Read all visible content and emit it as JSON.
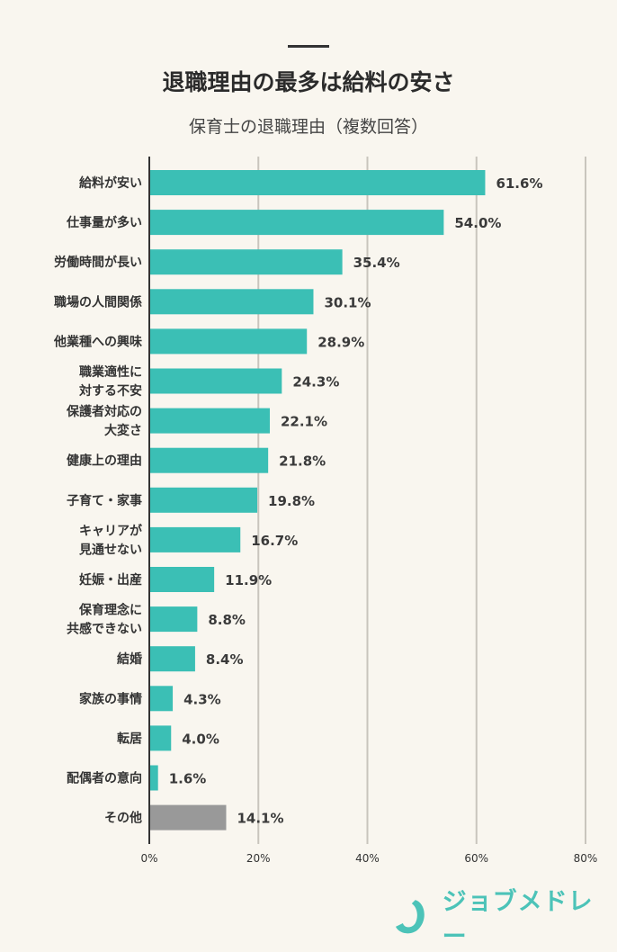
{
  "header": {
    "title": "退職理由の最多は給料の安さ",
    "subtitle": "保育士の退職理由（複数回答）"
  },
  "chart_data": {
    "type": "bar",
    "orientation": "horizontal",
    "title": "退職理由の最多は給料の安さ",
    "subtitle": "保育士の退職理由（複数回答）",
    "categories": [
      "給料が安い",
      "仕事量が多い",
      "労働時間が長い",
      "職場の人間関係",
      "他業種への興味",
      "職業適性に\n対する不安",
      "保護者対応の\n大変さ",
      "健康上の理由",
      "子育て・家事",
      "キャリアが\n見通せない",
      "妊娠・出産",
      "保育理念に\n共感できない",
      "結婚",
      "家族の事情",
      "転居",
      "配偶者の意向",
      "その他"
    ],
    "values": [
      61.6,
      54.0,
      35.4,
      30.1,
      28.9,
      24.3,
      22.1,
      21.8,
      19.8,
      16.7,
      11.9,
      8.8,
      8.4,
      4.3,
      4.0,
      1.6,
      14.1
    ],
    "data_labels": [
      "61.6%",
      "54.0%",
      "35.4%",
      "30.1%",
      "28.9%",
      "24.3%",
      "22.1%",
      "21.8%",
      "19.8%",
      "16.7%",
      "11.9%",
      "8.8%",
      "8.4%",
      "4.3%",
      "4.0%",
      "1.6%",
      "14.1%"
    ],
    "xlim": [
      0,
      80
    ],
    "xticks": [
      0,
      20,
      40,
      60,
      80
    ],
    "xtick_labels": [
      "0%",
      "20%",
      "40%",
      "60%",
      "80%"
    ],
    "grid": "vertical",
    "colors": {
      "bar": "#3bbfb5",
      "other_bar": "#999999",
      "grid": "#c9c5bd"
    }
  },
  "logo": {
    "text": "ジョブメドレー",
    "color": "#4cc3b8"
  }
}
